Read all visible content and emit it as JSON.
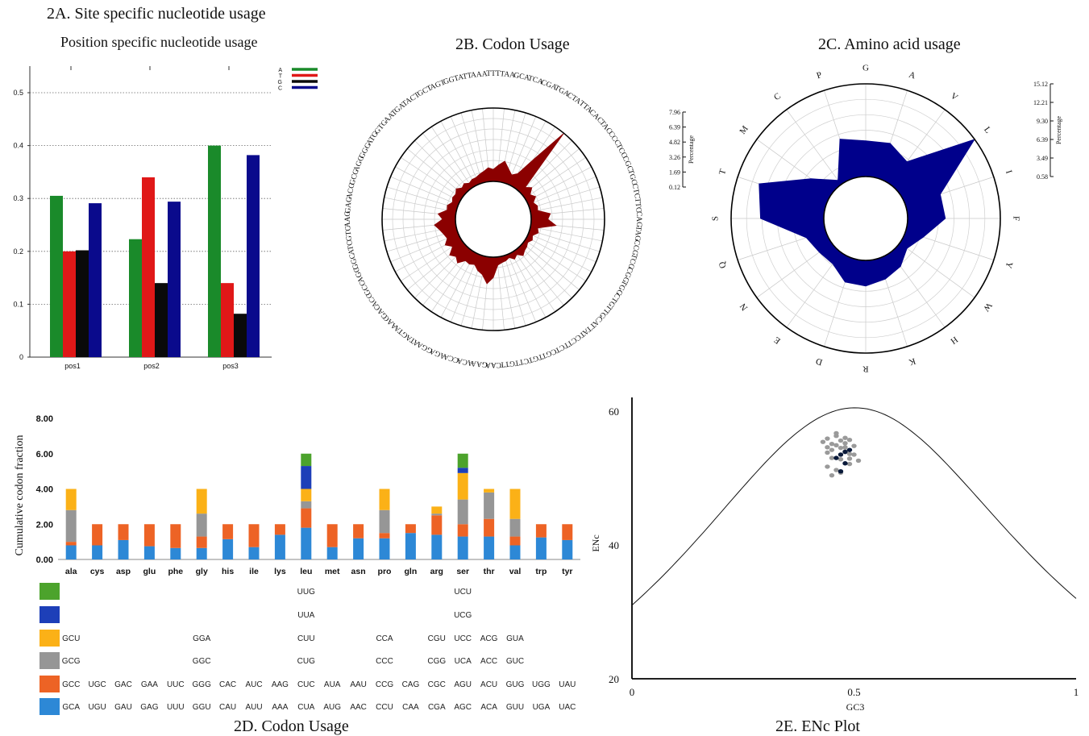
{
  "titles": {
    "a_main": "2A. Site specific nucleotide usage",
    "a_sub": "Position specific nucleotide usage",
    "b": "2B. Codon Usage",
    "c": "2C. Amino acid usage",
    "d": "2D. Codon Usage",
    "e": "2E. ENc Plot"
  },
  "colors": {
    "A": "#1a8a2a",
    "T": "#e01818",
    "G": "#0a0a0a",
    "C": "#0a0a8c",
    "rose_b": "#8b0000",
    "rose_c": "#00008b",
    "d_green": "#4ca32c",
    "d_blue": "#1d3fb8",
    "d_yellow": "#fbb117",
    "d_gray": "#969696",
    "d_orange": "#ed6325",
    "d_sky": "#2d88d6",
    "enc_gray": "#9a9a9a",
    "enc_dark": "#0a1a3a"
  },
  "chart_data": [
    {
      "id": "2A",
      "type": "bar",
      "title": "Position specific nucleotide usage",
      "categories": [
        "pos1",
        "pos2",
        "pos3"
      ],
      "series": [
        {
          "name": "A",
          "values": [
            0.305,
            0.223,
            0.4
          ]
        },
        {
          "name": "T",
          "values": [
            0.2,
            0.34,
            0.14
          ]
        },
        {
          "name": "G",
          "values": [
            0.202,
            0.14,
            0.082
          ]
        },
        {
          "name": "C",
          "values": [
            0.291,
            0.294,
            0.382
          ]
        }
      ],
      "yticks": [
        "0",
        "0.1",
        "0.2",
        "0.3",
        "0.4",
        "0.5"
      ],
      "ylim": [
        0,
        0.55
      ],
      "legend": "top-right",
      "grid": "dotted horizontal"
    },
    {
      "id": "2B",
      "type": "radar",
      "title": "Codon Usage",
      "scale_title": "Percentage",
      "scale_ticks": [
        "7.96",
        "6.39",
        "4.82",
        "3.26",
        "1.69",
        "0.12"
      ],
      "categories": [
        "TTT",
        "TAA",
        "GCA",
        "TCA",
        "CGA",
        "TGA",
        "CTA",
        "TTA",
        "CAC",
        "TAC",
        "CCC",
        "TCC",
        "CGC",
        "TGC",
        "CTC",
        "TTC",
        "CAG",
        "TAG",
        "CCG",
        "TCG",
        "CGG",
        "TGG",
        "CTG",
        "TTG",
        "CAT",
        "TAT",
        "CCT",
        "TCT",
        "CGT",
        "TGT",
        "CTT",
        "GTT",
        "CAA",
        "GAA",
        "ACA",
        "CCA",
        "AGA",
        "GGA",
        "ATA",
        "GTA",
        "AAC",
        "GAC",
        "ACC",
        "GCC",
        "AGC",
        "GGC",
        "ATC",
        "GTC",
        "AAG",
        "GAG",
        "ACG",
        "GCG",
        "AGG",
        "GGG",
        "ATG",
        "GTG",
        "AAT",
        "GAT",
        "ACT",
        "GCT",
        "AGT",
        "GGT",
        "ATT",
        "AAA"
      ],
      "values": [
        1.4,
        1.9,
        2.4,
        1.7,
        1.2,
        1.6,
        3.7,
        7.96,
        0.9,
        1.4,
        0.8,
        1.2,
        0.7,
        1.0,
        0.9,
        2.2,
        1.9,
        2.8,
        0.9,
        1.1,
        0.6,
        0.8,
        0.5,
        0.7,
        0.8,
        1.1,
        0.6,
        0.9,
        0.5,
        0.7,
        0.8,
        1.0,
        2.3,
        3.0,
        2.1,
        1.8,
        1.3,
        1.5,
        1.4,
        2.1,
        1.7,
        2.1,
        1.3,
        1.9,
        1.4,
        1.6,
        1.9,
        2.4,
        1.5,
        2.0,
        1.1,
        1.2,
        0.8,
        1.0,
        0.9,
        1.2,
        0.8,
        1.0,
        0.7,
        0.9,
        0.9,
        1.1,
        1.3,
        1.6
      ]
    },
    {
      "id": "2C",
      "type": "radar",
      "title": "Amino acid usage",
      "scale_title": "Percentage",
      "scale_ticks": [
        "15.12",
        "12.21",
        "9.30",
        "6.39",
        "3.49",
        "0.58"
      ],
      "categories": [
        "G",
        "A",
        "V",
        "L",
        "I",
        "F",
        "Y",
        "W",
        "H",
        "K",
        "R",
        "D",
        "E",
        "N",
        "Q",
        "S",
        "T",
        "M",
        "C",
        "P"
      ],
      "values": [
        6.2,
        6.4,
        5.0,
        15.12,
        6.3,
        6.5,
        3.5,
        2.0,
        3.3,
        4.0,
        4.6,
        4.5,
        2.8,
        3.0,
        3.8,
        10.5,
        11.6,
        4.6,
        1.4,
        7.1
      ]
    },
    {
      "id": "2D",
      "type": "bar",
      "stacked": true,
      "ylabel": "Cumulative codon fraction",
      "yticks": [
        "0.00",
        "2.00",
        "4.00",
        "6.00",
        "8.00"
      ],
      "ylim": [
        0,
        8
      ],
      "categories": [
        "ala",
        "cys",
        "asp",
        "glu",
        "phe",
        "gly",
        "his",
        "ile",
        "lys",
        "leu",
        "met",
        "asn",
        "pro",
        "gln",
        "arg",
        "ser",
        "thr",
        "val",
        "trp",
        "tyr"
      ],
      "series": [
        {
          "name": "row6",
          "values": [
            0.8,
            0.8,
            1.1,
            0.75,
            0.65,
            0.65,
            1.15,
            0.7,
            1.4,
            1.8,
            0.7,
            1.2,
            1.2,
            1.5,
            1.4,
            1.3,
            1.3,
            0.8,
            1.25,
            1.1
          ]
        },
        {
          "name": "row5",
          "values": [
            0.2,
            1.2,
            0.9,
            1.25,
            1.35,
            0.65,
            0.85,
            1.3,
            0.6,
            1.1,
            1.3,
            0.8,
            0.3,
            0.5,
            1.1,
            0.7,
            1.0,
            0.5,
            0.75,
            0.9
          ]
        },
        {
          "name": "row4",
          "values": [
            1.8,
            0,
            0,
            0,
            0,
            1.3,
            0,
            0,
            0,
            0.4,
            0,
            0,
            1.3,
            0,
            0.1,
            1.4,
            1.5,
            1.0,
            0,
            0
          ]
        },
        {
          "name": "row3",
          "values": [
            1.2,
            0,
            0,
            0,
            0,
            1.4,
            0,
            0,
            0,
            0.7,
            0,
            0,
            1.2,
            0,
            0.4,
            1.5,
            0.2,
            1.7,
            0,
            0
          ]
        },
        {
          "name": "row2",
          "values": [
            0,
            0,
            0,
            0,
            0,
            0,
            0,
            0,
            0,
            1.3,
            0,
            0,
            0,
            0,
            0,
            0.3,
            0,
            0,
            0,
            0
          ]
        },
        {
          "name": "row1",
          "values": [
            0,
            0,
            0,
            0,
            0,
            0,
            0,
            0,
            0,
            0.7,
            0,
            0,
            0,
            0,
            0,
            0.8,
            0,
            0,
            0,
            0
          ]
        }
      ],
      "codon_rows": [
        [
          "",
          "",
          "",
          "",
          "",
          "",
          "",
          "",
          "",
          "UUG",
          "",
          "",
          "",
          "",
          "",
          "UCU",
          "",
          "",
          "",
          ""
        ],
        [
          "",
          "",
          "",
          "",
          "",
          "",
          "",
          "",
          "",
          "UUA",
          "",
          "",
          "",
          "",
          "",
          "UCG",
          "",
          "",
          "",
          ""
        ],
        [
          "GCU",
          "",
          "",
          "",
          "",
          "GGA",
          "",
          "",
          "",
          "CUU",
          "",
          "",
          "CCA",
          "",
          "CGU",
          "UCC",
          "ACG",
          "GUA",
          "",
          ""
        ],
        [
          "GCG",
          "",
          "",
          "",
          "",
          "GGC",
          "",
          "",
          "",
          "CUG",
          "",
          "",
          "CCC",
          "",
          "CGG",
          "UCA",
          "ACC",
          "GUC",
          "",
          ""
        ],
        [
          "GCC",
          "UGC",
          "GAC",
          "GAA",
          "UUC",
          "GGG",
          "CAC",
          "AUC",
          "AAG",
          "CUC",
          "AUA",
          "AAU",
          "CCG",
          "CAG",
          "CGC",
          "AGU",
          "ACU",
          "GUG",
          "UGG",
          "UAU"
        ],
        [
          "GCA",
          "UGU",
          "GAU",
          "GAG",
          "UUU",
          "GGU",
          "CAU",
          "AUU",
          "AAA",
          "CUA",
          "AUG",
          "AAC",
          "CCU",
          "CAA",
          "CGA",
          "AGC",
          "ACA",
          "GUU",
          "UGA",
          "UAC"
        ]
      ]
    },
    {
      "id": "2E",
      "type": "scatter",
      "xlabel": "GC3",
      "ylabel": "ENc",
      "xticks": [
        "0",
        "0.5",
        "1"
      ],
      "yticks": [
        "20",
        "40",
        "60"
      ],
      "xlim": [
        0,
        1
      ],
      "ylim": [
        20,
        62
      ],
      "curve": "expected ENc = 2 + s + 29/(s^2 + (1-s)^2)",
      "points_gray": [
        [
          0.43,
          55.4
        ],
        [
          0.44,
          55.9
        ],
        [
          0.45,
          55.1
        ],
        [
          0.46,
          56.3
        ],
        [
          0.47,
          55.6
        ],
        [
          0.48,
          55.2
        ],
        [
          0.49,
          55.7
        ],
        [
          0.44,
          54.6
        ],
        [
          0.45,
          54.2
        ],
        [
          0.46,
          54.9
        ],
        [
          0.47,
          54.5
        ],
        [
          0.48,
          54.0
        ],
        [
          0.49,
          53.6
        ],
        [
          0.5,
          54.8
        ],
        [
          0.5,
          53.5
        ],
        [
          0.45,
          53.0
        ],
        [
          0.47,
          52.8
        ],
        [
          0.49,
          52.1
        ],
        [
          0.51,
          52.6
        ],
        [
          0.44,
          51.7
        ],
        [
          0.46,
          51.2
        ],
        [
          0.45,
          50.4
        ],
        [
          0.47,
          50.8
        ],
        [
          0.48,
          56.0
        ],
        [
          0.46,
          56.7
        ],
        [
          0.44,
          53.8
        ],
        [
          0.48,
          54.6
        ],
        [
          0.49,
          52.9
        ]
      ],
      "points_dark": [
        [
          0.46,
          53.0
        ],
        [
          0.47,
          53.5
        ],
        [
          0.48,
          53.9
        ],
        [
          0.49,
          54.2
        ],
        [
          0.47,
          51.0
        ],
        [
          0.48,
          52.2
        ]
      ]
    }
  ]
}
